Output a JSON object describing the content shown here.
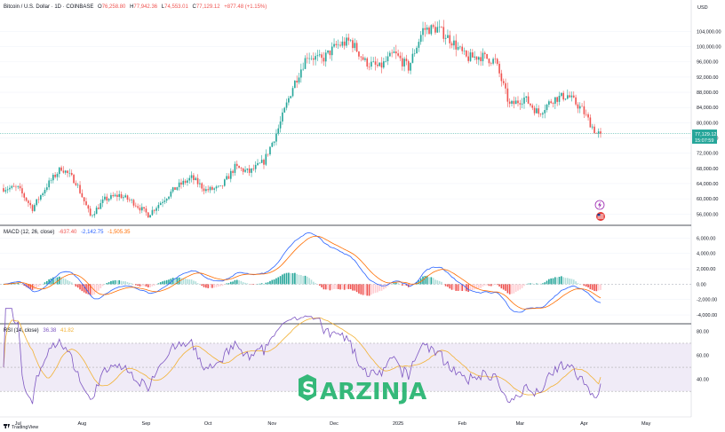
{
  "colors": {
    "up": "#26a69a",
    "down": "#ef5350",
    "macd_line": "#2962ff",
    "signal_line": "#ff6d00",
    "rsi_line": "#7e57c2",
    "rsi_ma": "#f2b134",
    "rsi_band": "#ede7f6",
    "brand": "#2bb673",
    "price_tag": "#26a69a"
  },
  "icons": [
    "lightning-icon",
    "flag-icon",
    "tradingview-logo-icon",
    "arzinja-logo-icon"
  ],
  "header": {
    "symbol": "Bitcoin / U.S. Dollar · 1D · COINBASE",
    "open_label": "O",
    "open_value": "76,258.80",
    "high_label": "H",
    "high_value": "77,942.36",
    "low_label": "L",
    "low_value": "74,553.01",
    "close_label": "C",
    "close_value": "77,129.12",
    "change": "+877.48 (+1.15%)"
  },
  "price_tag": {
    "price": "77,129.12",
    "countdown": "15:07:59"
  },
  "macd_legend": {
    "name": "MACD (12, 26, close)",
    "hist": "-637.40",
    "macd": "-2,142.75",
    "signal": "-1,505.35"
  },
  "rsi_legend": {
    "name": "RSI (14, close)",
    "rsi": "36.38",
    "ma": "41.82"
  },
  "watermark": {
    "text": "ARZINJA"
  },
  "footer": {
    "brand": "TradingView"
  },
  "chart_data": [
    {
      "type": "candlestick",
      "title": "Bitcoin / U.S. Dollar · 1D · COINBASE",
      "currency": "USD",
      "y_axis_label": "USD",
      "ylim": [
        53500,
        109000
      ],
      "yticks": [
        {
          "value": 104000,
          "label": "104,000.00"
        },
        {
          "value": 100000,
          "label": "100,000.00"
        },
        {
          "value": 96000,
          "label": "96,000.00"
        },
        {
          "value": 92000,
          "label": "92,000.00"
        },
        {
          "value": 88000,
          "label": "88,000.00"
        },
        {
          "value": 84000,
          "label": "84,000.00"
        },
        {
          "value": 80000,
          "label": "80,000.00"
        },
        {
          "value": 76000,
          "label": "76,000.00"
        },
        {
          "value": 72000,
          "label": "72,000.00"
        },
        {
          "value": 68000,
          "label": "68,000.00"
        },
        {
          "value": 64000,
          "label": "64,000.00"
        },
        {
          "value": 60000,
          "label": "60,000.00"
        },
        {
          "value": 56000,
          "label": "56,000.00"
        }
      ],
      "x_ticks": [
        "Jul",
        "Aug",
        "Sep",
        "Oct",
        "Nov",
        "Dec",
        "2025",
        "Feb",
        "Mar",
        "Apr",
        "May"
      ],
      "last_price": 77129.12,
      "weekly_close_path": [
        {
          "date": "2024-07-01",
          "close": 62800
        },
        {
          "date": "2024-07-08",
          "close": 57500
        },
        {
          "date": "2024-07-15",
          "close": 63500
        },
        {
          "date": "2024-07-22",
          "close": 68200
        },
        {
          "date": "2024-07-29",
          "close": 64500
        },
        {
          "date": "2024-08-05",
          "close": 55500
        },
        {
          "date": "2024-08-12",
          "close": 59800
        },
        {
          "date": "2024-08-19",
          "close": 61000
        },
        {
          "date": "2024-08-26",
          "close": 59000
        },
        {
          "date": "2024-09-02",
          "close": 55800
        },
        {
          "date": "2024-09-09",
          "close": 59600
        },
        {
          "date": "2024-09-16",
          "close": 63200
        },
        {
          "date": "2024-09-23",
          "close": 65500
        },
        {
          "date": "2024-09-30",
          "close": 62300
        },
        {
          "date": "2024-10-07",
          "close": 62800
        },
        {
          "date": "2024-10-14",
          "close": 68300
        },
        {
          "date": "2024-10-21",
          "close": 67000
        },
        {
          "date": "2024-10-28",
          "close": 69800
        },
        {
          "date": "2024-11-04",
          "close": 78500
        },
        {
          "date": "2024-11-11",
          "close": 89500
        },
        {
          "date": "2024-11-18",
          "close": 97800
        },
        {
          "date": "2024-11-25",
          "close": 96500
        },
        {
          "date": "2024-12-02",
          "close": 100200
        },
        {
          "date": "2024-12-09",
          "close": 101500
        },
        {
          "date": "2024-12-16",
          "close": 96000
        },
        {
          "date": "2024-12-23",
          "close": 94500
        },
        {
          "date": "2024-12-30",
          "close": 98200
        },
        {
          "date": "2025-01-06",
          "close": 94500
        },
        {
          "date": "2025-01-13",
          "close": 104500
        },
        {
          "date": "2025-01-20",
          "close": 104800
        },
        {
          "date": "2025-01-27",
          "close": 101500
        },
        {
          "date": "2025-02-03",
          "close": 97000
        },
        {
          "date": "2025-02-10",
          "close": 97500
        },
        {
          "date": "2025-02-17",
          "close": 96200
        },
        {
          "date": "2025-02-24",
          "close": 84500
        },
        {
          "date": "2025-03-03",
          "close": 86500
        },
        {
          "date": "2025-03-10",
          "close": 82500
        },
        {
          "date": "2025-03-17",
          "close": 86200
        },
        {
          "date": "2025-03-24",
          "close": 87200
        },
        {
          "date": "2025-03-31",
          "close": 83500
        },
        {
          "date": "2025-04-07",
          "close": 77129
        }
      ]
    },
    {
      "type": "macd",
      "title": "MACD (12, 26, close)",
      "ylim": [
        -4800,
        7200
      ],
      "yticks": [
        {
          "value": 6000,
          "label": "6,000.00"
        },
        {
          "value": 4000,
          "label": "4,000.00"
        },
        {
          "value": 2000,
          "label": "2,000.00"
        },
        {
          "value": 0,
          "label": "0.00"
        },
        {
          "value": -2000,
          "label": "-2,000.00"
        },
        {
          "value": -4000,
          "label": "-4,000.00"
        }
      ],
      "last": {
        "histogram": -637.4,
        "macd": -2142.75,
        "signal": -1505.35
      }
    },
    {
      "type": "line",
      "title": "RSI (14, close)",
      "ylim": [
        22,
        84
      ],
      "band": [
        30,
        70
      ],
      "yticks": [
        {
          "value": 80,
          "label": "80.00"
        },
        {
          "value": 60,
          "label": "60.00"
        },
        {
          "value": 40,
          "label": "40.00"
        }
      ],
      "last": {
        "rsi": 36.38,
        "ma": 41.82
      }
    }
  ]
}
